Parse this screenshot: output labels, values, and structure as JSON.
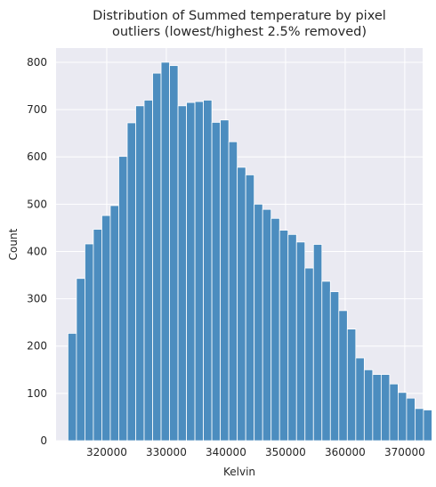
{
  "chart_data": {
    "type": "bar",
    "title_lines": [
      "Distribution of Summed temperature by pixel",
      "outliers (lowest/highest 2.5% removed)"
    ],
    "xlabel": "Kelvin",
    "ylabel": "Count",
    "xlim": [
      311500,
      373000
    ],
    "ylim": [
      0,
      830
    ],
    "xticks": [
      320000,
      330000,
      340000,
      350000,
      360000,
      370000
    ],
    "xtick_labels": [
      "320000",
      "330000",
      "340000",
      "350000",
      "360000",
      "370000"
    ],
    "yticks": [
      0,
      100,
      200,
      300,
      400,
      500,
      600,
      700,
      800
    ],
    "ytick_labels": [
      "0",
      "100",
      "200",
      "300",
      "400",
      "500",
      "600",
      "700",
      "800"
    ],
    "grid": true,
    "bin_start": 313500,
    "bin_width": 1420,
    "counts": [
      227,
      343,
      416,
      447,
      476,
      497,
      601,
      672,
      708,
      720,
      777,
      800,
      793,
      708,
      715,
      717,
      720,
      673,
      678,
      632,
      578,
      562,
      500,
      489,
      470,
      445,
      436,
      420,
      365,
      415,
      337,
      315,
      275,
      236,
      175,
      150,
      140,
      140,
      120,
      102,
      90,
      68,
      65
    ]
  },
  "colors": {
    "plot_background": "#eaeaf2",
    "grid": "#ffffff",
    "bar_fill": "#4c8dbf",
    "bar_edge": "#ffffff",
    "text": "#262626"
  }
}
